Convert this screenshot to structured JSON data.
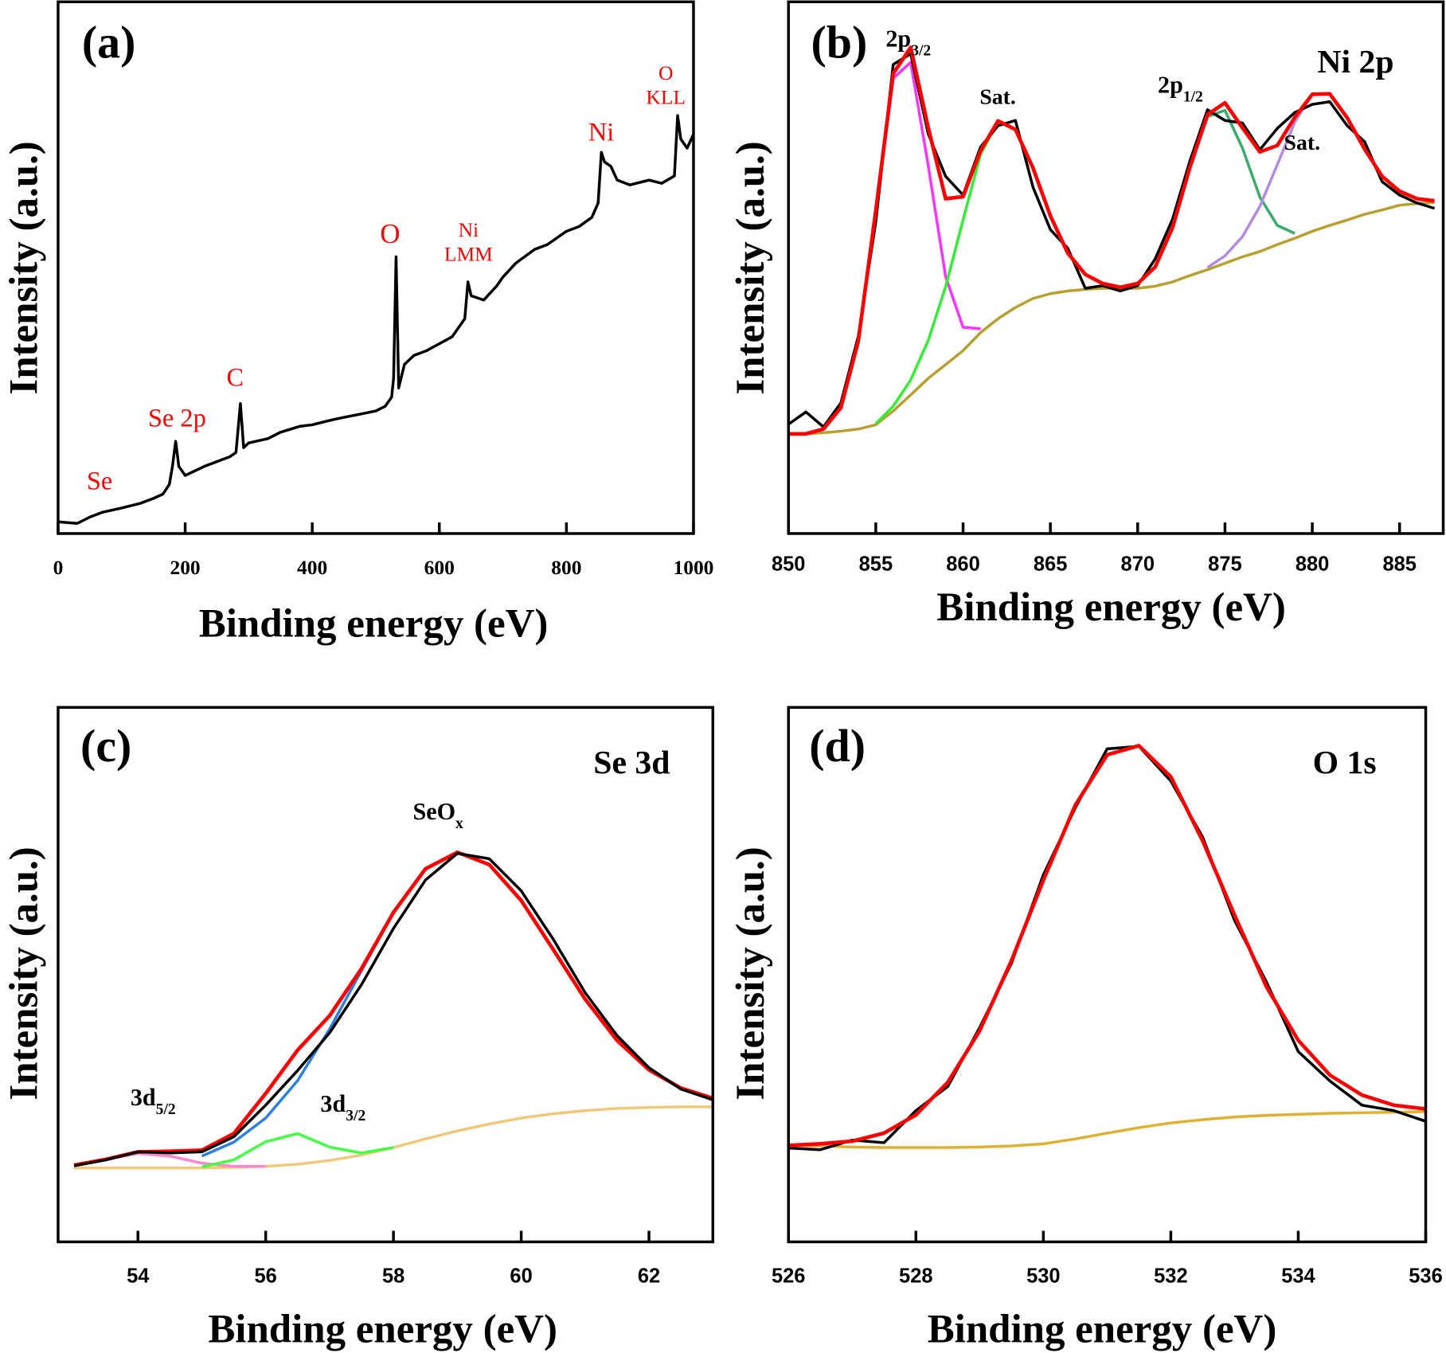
{
  "chart_data": [
    {
      "type": "line",
      "label": "(a)",
      "xlabel": "Binding energy (eV)",
      "ylabel": "Intensity (a.u.)",
      "xlim": [
        0,
        1000
      ],
      "xticks": [
        0,
        200,
        400,
        600,
        800,
        1000
      ],
      "ylim": [
        0,
        100
      ],
      "annotation_color": "#ff0000",
      "annotations": [
        {
          "text": "Se"
        },
        {
          "text": "Se 2p"
        },
        {
          "text": "C"
        },
        {
          "text": "O"
        },
        {
          "text": "Ni",
          "line2": "LMM"
        },
        {
          "text": "Ni"
        },
        {
          "text": "O",
          "line2": "KLL"
        }
      ],
      "x": [
        0,
        30,
        50,
        70,
        100,
        130,
        150,
        165,
        175,
        180,
        185,
        190,
        200,
        230,
        250,
        270,
        280,
        287,
        292,
        300,
        330,
        350,
        380,
        400,
        430,
        450,
        480,
        500,
        515,
        525,
        528,
        532,
        536,
        545,
        560,
        580,
        600,
        620,
        640,
        645,
        650,
        670,
        690,
        700,
        720,
        750,
        770,
        800,
        820,
        840,
        850,
        855,
        860,
        870,
        880,
        900,
        930,
        950,
        970,
        975,
        980,
        990,
        1000
      ],
      "series": [
        {
          "color": "#000000",
          "values": [
            2.2,
            1.9,
            3.1,
            4.0,
            4.8,
            5.7,
            6.6,
            7.4,
            9.2,
            12.6,
            17.3,
            12.6,
            10.9,
            12.6,
            13.5,
            14.4,
            15.2,
            24.4,
            16.1,
            17,
            17.8,
            19,
            20.1,
            20.4,
            21.3,
            21.8,
            22.5,
            23,
            23.9,
            25.6,
            29.1,
            51.9,
            27.3,
            31.7,
            33.4,
            34.3,
            35.6,
            36.9,
            40.3,
            47.2,
            44.6,
            43.8,
            46.4,
            48.1,
            50.7,
            53.3,
            54.2,
            56.7,
            57.6,
            59.3,
            62,
            71.5,
            69.7,
            68.9,
            66.3,
            65.4,
            66.3,
            65.7,
            67.1,
            78.4,
            74,
            72.3,
            74.9
          ]
        }
      ]
    },
    {
      "type": "line",
      "label": "(b)",
      "title": "Ni 2p",
      "xlabel": "Binding energy (eV)",
      "ylabel": "Intensity (a.u.)",
      "xlim": [
        850,
        887.5
      ],
      "xticks": [
        850,
        855,
        860,
        865,
        870,
        875,
        880,
        885
      ],
      "ylim": [
        0,
        100
      ],
      "annotation_color": "#000000",
      "annotations": [
        {
          "text": "2p",
          "sub": "3/2"
        },
        {
          "text": "Sat."
        },
        {
          "text": "2p",
          "sub": "1/2"
        },
        {
          "text": "Sat."
        }
      ],
      "x": [
        850,
        851,
        852,
        853,
        854,
        855,
        856,
        857,
        858,
        859,
        860,
        861,
        862,
        863,
        864,
        865,
        866,
        867,
        868,
        869,
        870,
        871,
        872,
        873,
        874,
        875,
        876,
        877,
        878,
        879,
        880,
        881,
        882,
        883,
        884,
        885,
        886,
        887
      ],
      "series": [
        {
          "color": "#b8a030",
          "values": [
            18.7,
            18.7,
            18.9,
            19.2,
            19.6,
            20.4,
            23,
            26,
            29.1,
            31.7,
            34.3,
            37.7,
            40.3,
            42.4,
            44.1,
            45,
            45.5,
            45.8,
            46,
            46,
            46,
            46.4,
            47.2,
            48.4,
            49.5,
            50.7,
            51.9,
            52.9,
            54.2,
            55.4,
            56.7,
            57.8,
            58.8,
            59.9,
            60.7,
            61.6,
            61.9,
            62.1
          ]
        },
        {
          "color": "#ff33ff",
          "values": [
            null,
            null,
            19.6,
            23.6,
            36.1,
            60.4,
            85.4,
            88.4,
            69.1,
            48.2,
            38.7,
            38.4,
            null,
            null,
            null,
            null,
            null,
            null,
            null,
            null,
            null,
            null,
            null,
            null,
            null,
            null,
            null,
            null,
            null,
            null,
            null,
            null,
            null,
            null,
            null,
            null,
            null,
            null
          ]
        },
        {
          "color": "#33ee33",
          "values": [
            null,
            null,
            null,
            null,
            null,
            20.6,
            23.9,
            28.8,
            36.2,
            46.3,
            58.8,
            71.1,
            77.3,
            75.8,
            68.6,
            59.6,
            52.6,
            48.6,
            46.9,
            46.2,
            null,
            null,
            null,
            null,
            null,
            null,
            null,
            null,
            null,
            null,
            null,
            null,
            null,
            null,
            null,
            null,
            null,
            null
          ]
        },
        {
          "color": "#3aaa6a",
          "values": [
            null,
            null,
            null,
            null,
            null,
            null,
            null,
            null,
            null,
            null,
            null,
            null,
            null,
            null,
            null,
            null,
            null,
            null,
            null,
            null,
            46.9,
            50,
            57.4,
            68.8,
            78.2,
            79.4,
            72.3,
            63.1,
            57.8,
            56.3,
            null,
            null,
            null,
            null,
            null,
            null,
            null,
            null
          ]
        },
        {
          "color": "#b38ae0",
          "values": [
            null,
            null,
            null,
            null,
            null,
            null,
            null,
            null,
            null,
            null,
            null,
            null,
            null,
            null,
            null,
            null,
            null,
            null,
            null,
            null,
            null,
            null,
            null,
            null,
            49.9,
            52.1,
            55.7,
            61.4,
            69.2,
            77.2,
            82.4,
            82.5,
            78,
            72.1,
            67,
            64.2,
            62.8,
            62.4
          ]
        },
        {
          "color": "#000000",
          "values": [
            20.5,
            22.8,
            20,
            24.5,
            37,
            58.5,
            88,
            90,
            75,
            67,
            63.5,
            72.5,
            76.5,
            77.5,
            65,
            57,
            53.5,
            46,
            46.5,
            45.5,
            46.5,
            51.5,
            59,
            70,
            79.5,
            77.5,
            77,
            72,
            76,
            79,
            80.5,
            81,
            76.5,
            73.5,
            66,
            63.5,
            62,
            61
          ]
        },
        {
          "color": "#ff0000",
          "values": [
            18.7,
            18.7,
            19.6,
            23.6,
            36.1,
            60.6,
            86.3,
            91.2,
            76.2,
            62.8,
            63.2,
            71.8,
            77.4,
            75.8,
            68.6,
            59.6,
            52.6,
            48.6,
            46.9,
            46.2,
            46.9,
            50,
            57.4,
            68.8,
            78.6,
            80.8,
            76.1,
            71.6,
            72.8,
            78.1,
            82.4,
            82.5,
            78,
            72.1,
            67,
            64.2,
            62.8,
            62.4
          ]
        }
      ]
    },
    {
      "type": "line",
      "label": "(c)",
      "title": "Se 3d",
      "xlabel": "Binding energy (eV)",
      "ylabel": "Intensity (a.u.)",
      "xlim": [
        52.75,
        63
      ],
      "xticks": [
        54,
        56,
        58,
        60,
        62
      ],
      "ylim": [
        0,
        100
      ],
      "annotation_color": "#000000",
      "annotations": [
        {
          "text": "3d",
          "sub": "5/2"
        },
        {
          "text": "3d",
          "sub": "3/2"
        },
        {
          "text": "SeO",
          "sub": "x"
        }
      ],
      "x": [
        53,
        53.5,
        54,
        54.5,
        55,
        55.5,
        56,
        56.5,
        57,
        57.5,
        58,
        58.5,
        59,
        59.5,
        60,
        60.5,
        61,
        61.5,
        62,
        62.5,
        63
      ],
      "series": [
        {
          "color": "#f0c878",
          "values": [
            13.8,
            13.8,
            13.8,
            13.8,
            13.8,
            13.9,
            14.1,
            14.5,
            15.2,
            16.2,
            17.6,
            19.2,
            20.7,
            22,
            23.1,
            23.9,
            24.5,
            24.9,
            25.1,
            25.2,
            25.2
          ]
        },
        {
          "color": "#ff88cc",
          "values": [
            14.3,
            15.4,
            16.5,
            16,
            14.7,
            14.1,
            14.1,
            null,
            null,
            null,
            null,
            null,
            null,
            null,
            null,
            null,
            null,
            null,
            null,
            null,
            null
          ]
        },
        {
          "color": "#44ff44",
          "values": [
            null,
            null,
            null,
            null,
            14,
            15.3,
            18.7,
            20.2,
            17.7,
            16.6,
            17.6,
            null,
            null,
            null,
            null,
            null,
            null,
            null,
            null,
            null,
            null
          ]
        },
        {
          "color": "#2f7fe0",
          "values": [
            null,
            null,
            null,
            null,
            16,
            18.6,
            23.1,
            30.1,
            39.7,
            50.6,
            61.5,
            69.6,
            72.7,
            70.4,
            63.7,
            54.6,
            45.3,
            37.6,
            32.1,
            28.7,
            26.8
          ]
        },
        {
          "color": "#ff0000",
          "values": [
            14.3,
            15.4,
            16.8,
            16.9,
            17.1,
            20.2,
            27.7,
            35.8,
            42.2,
            51,
            61.5,
            69.6,
            72.7,
            70.4,
            63.7,
            54.6,
            45.3,
            37.6,
            32.1,
            28.7,
            26.8
          ]
        },
        {
          "color": "#000000",
          "values": [
            14.2,
            15.3,
            16.8,
            16.6,
            16.8,
            19.6,
            25.5,
            32,
            39,
            48,
            58.5,
            67.5,
            72.5,
            71.5,
            65.5,
            56.5,
            46.5,
            38.5,
            32.5,
            28.5,
            26.5
          ]
        }
      ]
    },
    {
      "type": "line",
      "label": "(d)",
      "title": "O 1s",
      "xlabel": "Binding energy (eV)",
      "ylabel": "Intensity (a.u.)",
      "xlim": [
        526,
        536
      ],
      "xticks": [
        526,
        528,
        530,
        532,
        534,
        536
      ],
      "ylim": [
        0,
        100
      ],
      "x": [
        526,
        526.5,
        527,
        527.5,
        528,
        528.5,
        529,
        529.5,
        530,
        530.5,
        531,
        531.5,
        532,
        532.5,
        533,
        533.5,
        534,
        534.5,
        535,
        535.5,
        536
      ],
      "series": [
        {
          "color": "#e0b030",
          "values": [
            17.9,
            17.9,
            17.7,
            17.6,
            17.6,
            17.6,
            17.7,
            17.9,
            18.3,
            19.2,
            20.3,
            21.3,
            22.2,
            22.8,
            23.3,
            23.6,
            23.8,
            24,
            24.1,
            24.2,
            24.3
          ]
        },
        {
          "color": "#000000",
          "values": [
            17.5,
            17.2,
            19,
            18.5,
            24.5,
            29,
            40,
            52,
            68.5,
            81,
            92,
            92.5,
            86,
            75.5,
            60,
            48.5,
            35.5,
            30,
            25.5,
            24.5,
            22.5
          ]
        },
        {
          "color": "#ff0000",
          "values": [
            18,
            18.3,
            18.8,
            20.3,
            23.7,
            29.8,
            39.4,
            52.5,
            67.5,
            81.5,
            90.9,
            92.6,
            86.8,
            74.8,
            61,
            47.6,
            37.6,
            31.1,
            27.4,
            25.5,
            24.8
          ]
        }
      ]
    }
  ]
}
